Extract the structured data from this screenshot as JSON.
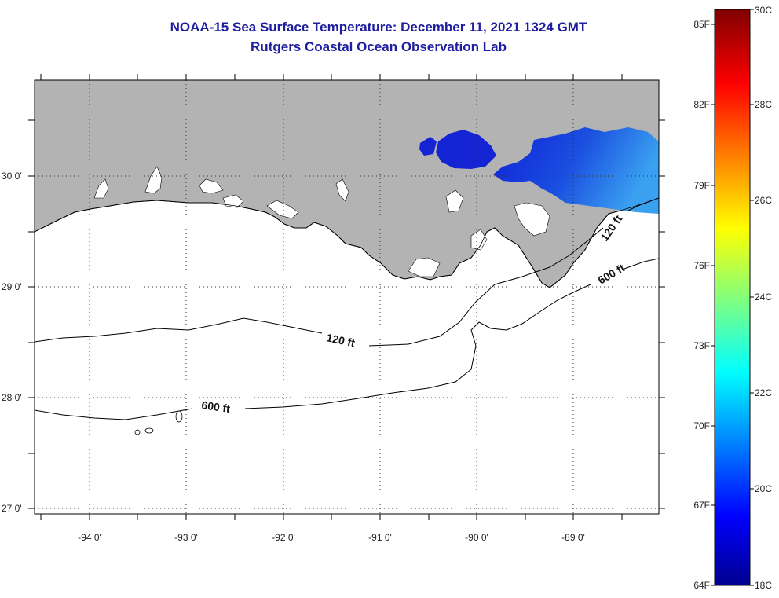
{
  "title": "NOAA-15 Sea Surface Temperature:  December 11, 2021 1324 GMT",
  "subtitle": "Rutgers Coastal Ocean Observation Lab",
  "map": {
    "lat_labels": [
      "30 0'",
      "29 0'",
      "28 0'",
      "27 0'"
    ],
    "lon_labels": [
      "-94 0'",
      "-93 0'",
      "-92 0'",
      "-91 0'",
      "-90 0'",
      "-89 0'"
    ],
    "contours": [
      {
        "label": "120 ft",
        "depth": "120 ft"
      },
      {
        "label": "600 ft",
        "depth": "600 ft"
      },
      {
        "label": "120 ft",
        "depth": "120 ft"
      },
      {
        "label": "600 ft",
        "depth": "600 ft"
      }
    ],
    "colors": {
      "land": "#b3b3b3",
      "ocean": "#ffffff",
      "cold": "#1a2fd8"
    }
  },
  "colorbar": {
    "f_labels": [
      "85F",
      "82F",
      "79F",
      "76F",
      "73F",
      "70F",
      "67F",
      "64F"
    ],
    "c_labels": [
      "30C",
      "28C",
      "26C",
      "24C",
      "22C",
      "20C",
      "18C"
    ]
  }
}
